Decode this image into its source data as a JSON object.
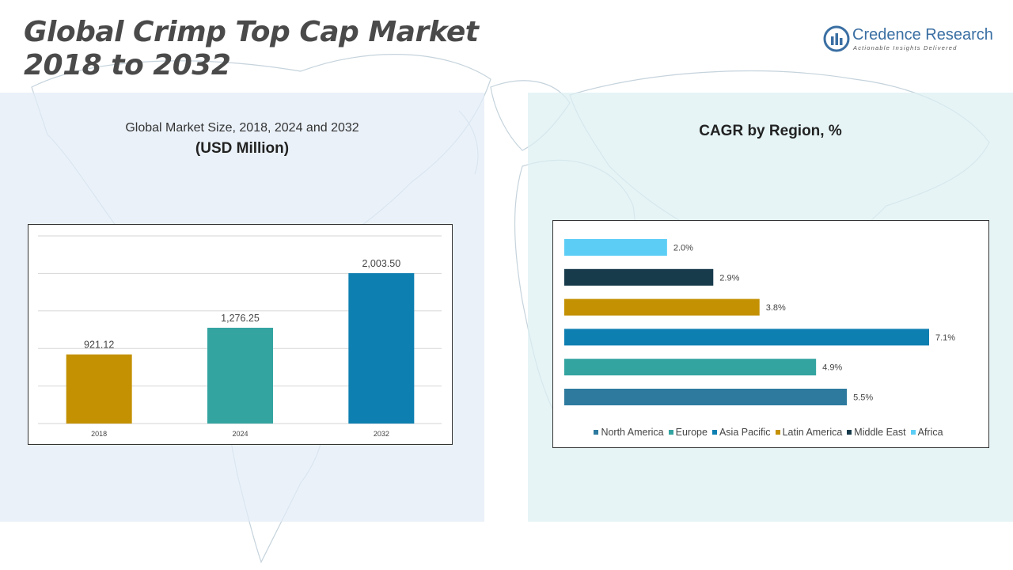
{
  "header": {
    "title_line1": "Global Crimp Top Cap Market",
    "title_line2": "2018 to 2032"
  },
  "brand": {
    "name": "Credence Research",
    "tagline": "Actionable Insights Delivered",
    "icon": "credence-logo-icon",
    "color": "#3a6fa3"
  },
  "left_panel": {
    "subtitle": "Global Market Size, 2018, 2024 and 2032",
    "unit": "(USD Million)"
  },
  "right_panel": {
    "title": "CAGR by Region, %"
  },
  "chart_data": [
    {
      "type": "bar",
      "categories": [
        "2018",
        "2024",
        "2032"
      ],
      "values": [
        921.12,
        1276.25,
        2003.5
      ],
      "value_labels": [
        "921.12",
        "1,276.25",
        "2,003.50"
      ],
      "colors": [
        "#c49102",
        "#34a4a1",
        "#0e7fb1"
      ],
      "title": "Global Market Size, 2018, 2024 and 2032",
      "ylabel": "(USD Million)",
      "ylim": [
        0,
        2500
      ],
      "grid": true
    },
    {
      "type": "bar",
      "orientation": "horizontal",
      "title": "CAGR by Region, %",
      "categories": [
        "North America",
        "Europe",
        "Asia Pacific",
        "Latin America",
        "Middle East",
        "Africa"
      ],
      "values": [
        5.5,
        4.9,
        7.1,
        3.8,
        2.9,
        2.0
      ],
      "value_labels": [
        "5.5%",
        "4.9%",
        "7.1%",
        "3.8%",
        "2.9%",
        "2.0%"
      ],
      "colors": [
        "#2e7a9e",
        "#34a4a1",
        "#0e7fb1",
        "#c49102",
        "#173b4b",
        "#5ccef6"
      ],
      "xlim": [
        0,
        7.1
      ],
      "grid": false,
      "legend": "bottom"
    }
  ]
}
